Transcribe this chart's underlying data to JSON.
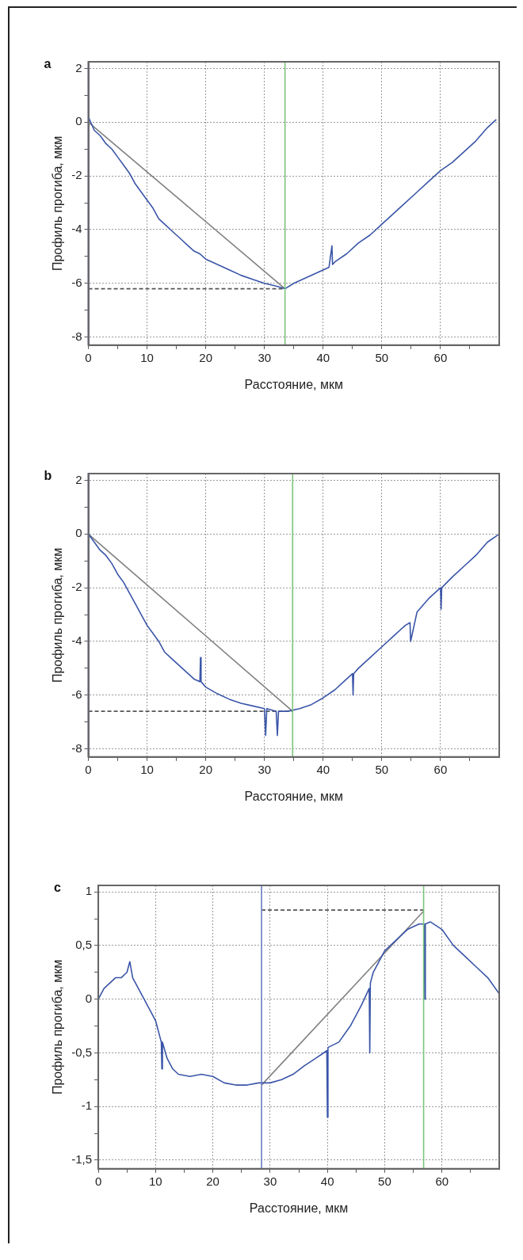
{
  "chart_data": [
    {
      "type": "line",
      "title": "a",
      "xlabel": "Расстояние, мкм",
      "ylabel": "Профиль прогиба, мкм",
      "xlim": [
        0,
        70
      ],
      "ylim": [
        -8.3,
        2.25
      ],
      "xticks": [
        0,
        {
          "value": 5,
          "label": null
        },
        10,
        {
          "value": 15,
          "label": null
        },
        20,
        {
          "value": 25,
          "label": null
        },
        30,
        {
          "value": 35,
          "label": null
        },
        40,
        {
          "value": 45,
          "label": null
        },
        50,
        {
          "value": 55,
          "label": null
        },
        60,
        {
          "value": 65,
          "label": null
        }
      ],
      "yticks": [
        -8,
        {
          "value": -7,
          "label": null
        },
        -6,
        {
          "value": -5,
          "label": null
        },
        -4,
        {
          "value": -3,
          "label": null
        },
        -2,
        {
          "value": -1,
          "label": null
        },
        0,
        {
          "value": 1,
          "label": null
        },
        2
      ],
      "grid": true,
      "legend": false,
      "marker": "none",
      "series": [
        {
          "color": "#3a55a8",
          "line_style": "solid",
          "x": [
            0,
            1,
            2,
            3,
            4,
            5,
            6,
            7,
            8,
            9,
            10,
            11,
            12,
            13,
            14,
            15,
            16,
            17,
            18,
            19,
            20,
            22,
            24,
            26,
            28,
            30,
            32,
            33.5,
            35,
            37,
            39,
            41,
            41.5,
            41.6,
            42,
            44,
            46,
            48,
            50,
            52,
            54,
            56,
            58,
            60,
            62,
            64,
            66,
            68,
            69.5
          ],
          "values": [
            0.2,
            -0.3,
            -0.5,
            -0.8,
            -1.0,
            -1.3,
            -1.6,
            -1.9,
            -2.3,
            -2.6,
            -2.9,
            -3.2,
            -3.6,
            -3.8,
            -4.0,
            -4.2,
            -4.4,
            -4.6,
            -4.8,
            -4.9,
            -5.1,
            -5.3,
            -5.5,
            -5.7,
            -5.85,
            -6.0,
            -6.1,
            -6.2,
            -6.0,
            -5.8,
            -5.6,
            -5.4,
            -4.6,
            -5.3,
            -5.2,
            -4.9,
            -4.5,
            -4.2,
            -3.8,
            -3.4,
            -3.0,
            -2.6,
            -2.2,
            -1.8,
            -1.5,
            -1.1,
            -0.7,
            -0.2,
            0.1
          ]
        },
        {
          "color": "#808080",
          "line_style": "solid",
          "x": [
            0,
            33.5
          ],
          "values": [
            0,
            -6.2
          ]
        },
        {
          "color": "#555555",
          "line_style": "dashed",
          "x": [
            0,
            33.5
          ],
          "values": [
            -6.2,
            -6.2
          ]
        }
      ],
      "ref_lines": [
        {
          "axis": "x",
          "value": 0,
          "color": "#8a9ad8"
        },
        {
          "axis": "x",
          "value": 33.5,
          "color": "#7cc47c"
        }
      ]
    },
    {
      "type": "line",
      "title": "b",
      "xlabel": "Расстояние, мкм",
      "ylabel": "Профиль прогиба, мкм",
      "xlim": [
        0,
        70
      ],
      "ylim": [
        -8.3,
        2.25
      ],
      "xticks": [
        0,
        {
          "value": 5,
          "label": null
        },
        10,
        {
          "value": 15,
          "label": null
        },
        20,
        {
          "value": 25,
          "label": null
        },
        30,
        {
          "value": 35,
          "label": null
        },
        40,
        {
          "value": 45,
          "label": null
        },
        50,
        {
          "value": 55,
          "label": null
        },
        60,
        {
          "value": 65,
          "label": null
        }
      ],
      "yticks": [
        -8,
        {
          "value": -7,
          "label": null
        },
        -6,
        {
          "value": -5,
          "label": null
        },
        -4,
        {
          "value": -3,
          "label": null
        },
        -2,
        {
          "value": -1,
          "label": null
        },
        0,
        {
          "value": 1,
          "label": null
        },
        2
      ],
      "grid": true,
      "legend": false,
      "marker": "none",
      "series": [
        {
          "color": "#3a55a8",
          "line_style": "solid",
          "x": [
            0,
            1,
            2,
            3,
            4,
            5,
            6,
            7,
            8,
            9,
            10,
            11,
            12,
            13,
            14,
            15,
            16,
            17,
            18,
            19,
            19.1,
            19.2,
            20,
            22,
            24,
            26,
            28,
            30,
            30.2,
            30.4,
            32,
            32.2,
            32.4,
            34,
            36,
            38,
            40,
            42,
            44,
            45,
            45.1,
            45.2,
            46,
            48,
            50,
            52,
            54,
            54.8,
            54.9,
            56,
            58,
            60,
            60.1,
            60.2,
            62,
            64,
            66,
            68,
            70
          ],
          "values": [
            0,
            -0.3,
            -0.6,
            -0.8,
            -1.1,
            -1.5,
            -1.8,
            -2.2,
            -2.6,
            -3.0,
            -3.4,
            -3.7,
            -4.0,
            -4.4,
            -4.6,
            -4.8,
            -5.0,
            -5.2,
            -5.4,
            -5.5,
            -4.6,
            -5.5,
            -5.7,
            -5.95,
            -6.15,
            -6.3,
            -6.4,
            -6.5,
            -7.5,
            -6.5,
            -6.6,
            -7.5,
            -6.6,
            -6.6,
            -6.5,
            -6.35,
            -6.1,
            -5.8,
            -5.4,
            -5.2,
            -6.0,
            -5.2,
            -5.0,
            -4.6,
            -4.2,
            -3.8,
            -3.4,
            -3.3,
            -4.0,
            -2.9,
            -2.4,
            -2.0,
            -2.8,
            -2.0,
            -1.6,
            -1.2,
            -0.8,
            -0.3,
            0
          ]
        },
        {
          "color": "#808080",
          "line_style": "solid",
          "x": [
            0,
            34.8
          ],
          "values": [
            0,
            -6.6
          ]
        },
        {
          "color": "#555555",
          "line_style": "dashed",
          "x": [
            0,
            34.8
          ],
          "values": [
            -6.6,
            -6.6
          ]
        }
      ],
      "ref_lines": [
        {
          "axis": "x",
          "value": 0,
          "color": "#8a9ad8"
        },
        {
          "axis": "x",
          "value": 34.8,
          "color": "#7cc47c"
        }
      ]
    },
    {
      "type": "line",
      "title": "c",
      "xlabel": "Расстояние, мкм",
      "ylabel": "Профиль прогиба, мкм",
      "xlim": [
        0,
        70
      ],
      "ylim": [
        -1.58,
        1.06
      ],
      "xticks": [
        0,
        {
          "value": 5,
          "label": null
        },
        10,
        {
          "value": 15,
          "label": null
        },
        20,
        {
          "value": 25,
          "label": null
        },
        30,
        {
          "value": 35,
          "label": null
        },
        40,
        {
          "value": 45,
          "label": null
        },
        50,
        {
          "value": 55,
          "label": null
        },
        60,
        {
          "value": 65,
          "label": null
        }
      ],
      "yticks": [
        {
          "value": -1.5,
          "label": "-1,5"
        },
        {
          "value": -1.25,
          "label": null
        },
        -1,
        {
          "value": -0.75,
          "label": null
        },
        {
          "value": -0.5,
          "label": "-0,5"
        },
        {
          "value": -0.25,
          "label": null
        },
        0,
        {
          "value": 0.25,
          "label": null
        },
        {
          "value": 0.5,
          "label": "0,5"
        },
        {
          "value": 0.75,
          "label": null
        },
        1
      ],
      "grid": true,
      "legend": false,
      "marker": "none",
      "series": [
        {
          "color": "#3a55a8",
          "line_style": "solid",
          "x": [
            0,
            1,
            2,
            3,
            4,
            5,
            5.5,
            6,
            7,
            8,
            9,
            10,
            11,
            11.1,
            11.2,
            12,
            13,
            14,
            16,
            18,
            20,
            22,
            24,
            26,
            28,
            30,
            32,
            34,
            36,
            38,
            39.9,
            40,
            40.1,
            42,
            44,
            46,
            47.3,
            47.4,
            47.5,
            48,
            50,
            52,
            54,
            56,
            56.9,
            57,
            57.1,
            58,
            60,
            62,
            64,
            66,
            68,
            70
          ],
          "values": [
            0,
            0.1,
            0.15,
            0.2,
            0.2,
            0.25,
            0.35,
            0.2,
            0.1,
            0.0,
            -0.1,
            -0.2,
            -0.4,
            -0.65,
            -0.4,
            -0.55,
            -0.65,
            -0.7,
            -0.72,
            -0.7,
            -0.72,
            -0.78,
            -0.8,
            -0.8,
            -0.78,
            -0.78,
            -0.75,
            -0.7,
            -0.62,
            -0.55,
            -0.48,
            -1.1,
            -0.45,
            -0.4,
            -0.25,
            -0.05,
            0.1,
            -0.5,
            0.15,
            0.25,
            0.45,
            0.55,
            0.65,
            0.7,
            0.7,
            0.0,
            0.7,
            0.72,
            0.65,
            0.5,
            0.4,
            0.3,
            0.2,
            0.05
          ]
        },
        {
          "color": "#808080",
          "line_style": "solid",
          "x": [
            28.5,
            56.8
          ],
          "values": [
            -0.8,
            0.82
          ]
        },
        {
          "color": "#555555",
          "line_style": "dashed",
          "x": [
            28.5,
            56.8
          ],
          "values": [
            0.83,
            0.83
          ]
        }
      ],
      "ref_lines": [
        {
          "axis": "x",
          "value": 28.5,
          "color": "#6a7cc4"
        },
        {
          "axis": "x",
          "value": 56.8,
          "color": "#7cc47c"
        }
      ]
    }
  ]
}
